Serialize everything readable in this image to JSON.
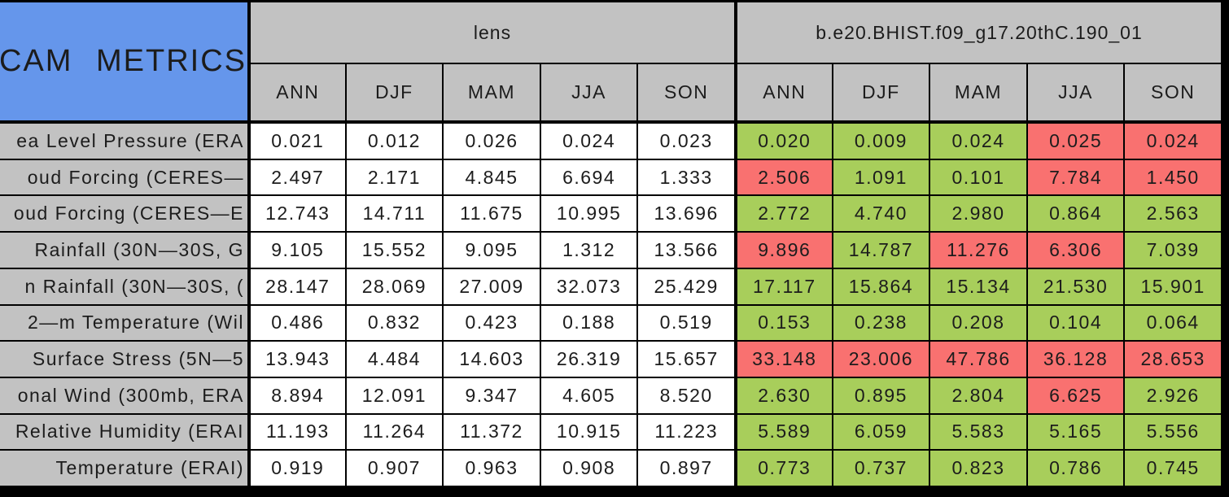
{
  "colors": {
    "blue": "#6596EB",
    "gray": "#C2C2C2",
    "green": "#A8CE5B",
    "red": "#F97170",
    "line": "#000000"
  },
  "chart_data": {
    "type": "table",
    "title": "CAM METRICS",
    "col_groups": [
      "lens",
      "b.e20.BHIST.f09_g17.20thC.190_01"
    ],
    "seasons": [
      "ANN",
      "DJF",
      "MAM",
      "JJA",
      "SON"
    ],
    "cell_color_legend": {
      "green": "#A8CE5B",
      "red": "#F97170",
      "plain": "#FFFFFF"
    },
    "rows": [
      {
        "label": "ea Level Pressure (ERA",
        "lens": [
          "0.021",
          "0.012",
          "0.026",
          "0.024",
          "0.023"
        ],
        "case": [
          "0.020",
          "0.009",
          "0.024",
          "0.025",
          "0.024"
        ],
        "case_colors": [
          "green",
          "green",
          "green",
          "red",
          "red"
        ]
      },
      {
        "label": "oud Forcing (CERES—",
        "lens": [
          "2.497",
          "2.171",
          "4.845",
          "6.694",
          "1.333"
        ],
        "case": [
          "2.506",
          "1.091",
          "0.101",
          "7.784",
          "1.450"
        ],
        "case_colors": [
          "red",
          "green",
          "green",
          "red",
          "red"
        ]
      },
      {
        "label": "oud Forcing (CERES—E",
        "lens": [
          "12.743",
          "14.711",
          "11.675",
          "10.995",
          "13.696"
        ],
        "case": [
          "2.772",
          "4.740",
          "2.980",
          "0.864",
          "2.563"
        ],
        "case_colors": [
          "green",
          "green",
          "green",
          "green",
          "green"
        ]
      },
      {
        "label": "Rainfall (30N—30S, G",
        "lens": [
          "9.105",
          "15.552",
          "9.095",
          "1.312",
          "13.566"
        ],
        "case": [
          "9.896",
          "14.787",
          "11.276",
          "6.306",
          "7.039"
        ],
        "case_colors": [
          "red",
          "green",
          "red",
          "red",
          "green"
        ]
      },
      {
        "label": "n Rainfall (30N—30S, (",
        "lens": [
          "28.147",
          "28.069",
          "27.009",
          "32.073",
          "25.429"
        ],
        "case": [
          "17.117",
          "15.864",
          "15.134",
          "21.530",
          "15.901"
        ],
        "case_colors": [
          "green",
          "green",
          "green",
          "green",
          "green"
        ]
      },
      {
        "label": "2—m Temperature (Wil",
        "lens": [
          "0.486",
          "0.832",
          "0.423",
          "0.188",
          "0.519"
        ],
        "case": [
          "0.153",
          "0.238",
          "0.208",
          "0.104",
          "0.064"
        ],
        "case_colors": [
          "green",
          "green",
          "green",
          "green",
          "green"
        ]
      },
      {
        "label": "Surface Stress (5N—5",
        "lens": [
          "13.943",
          "4.484",
          "14.603",
          "26.319",
          "15.657"
        ],
        "case": [
          "33.148",
          "23.006",
          "47.786",
          "36.128",
          "28.653"
        ],
        "case_colors": [
          "red",
          "red",
          "red",
          "red",
          "red"
        ]
      },
      {
        "label": "onal Wind (300mb, ERA",
        "lens": [
          "8.894",
          "12.091",
          "9.347",
          "4.605",
          "8.520"
        ],
        "case": [
          "2.630",
          "0.895",
          "2.804",
          "6.625",
          "2.926"
        ],
        "case_colors": [
          "green",
          "green",
          "green",
          "red",
          "green"
        ]
      },
      {
        "label": "Relative Humidity (ERAI",
        "lens": [
          "11.193",
          "11.264",
          "11.372",
          "10.915",
          "11.223"
        ],
        "case": [
          "5.589",
          "6.059",
          "5.583",
          "5.165",
          "5.556"
        ],
        "case_colors": [
          "green",
          "green",
          "green",
          "green",
          "green"
        ]
      },
      {
        "label": "Temperature (ERAI)",
        "lens": [
          "0.919",
          "0.907",
          "0.963",
          "0.908",
          "0.897"
        ],
        "case": [
          "0.773",
          "0.737",
          "0.823",
          "0.786",
          "0.745"
        ],
        "case_colors": [
          "green",
          "green",
          "green",
          "green",
          "green"
        ]
      }
    ]
  }
}
